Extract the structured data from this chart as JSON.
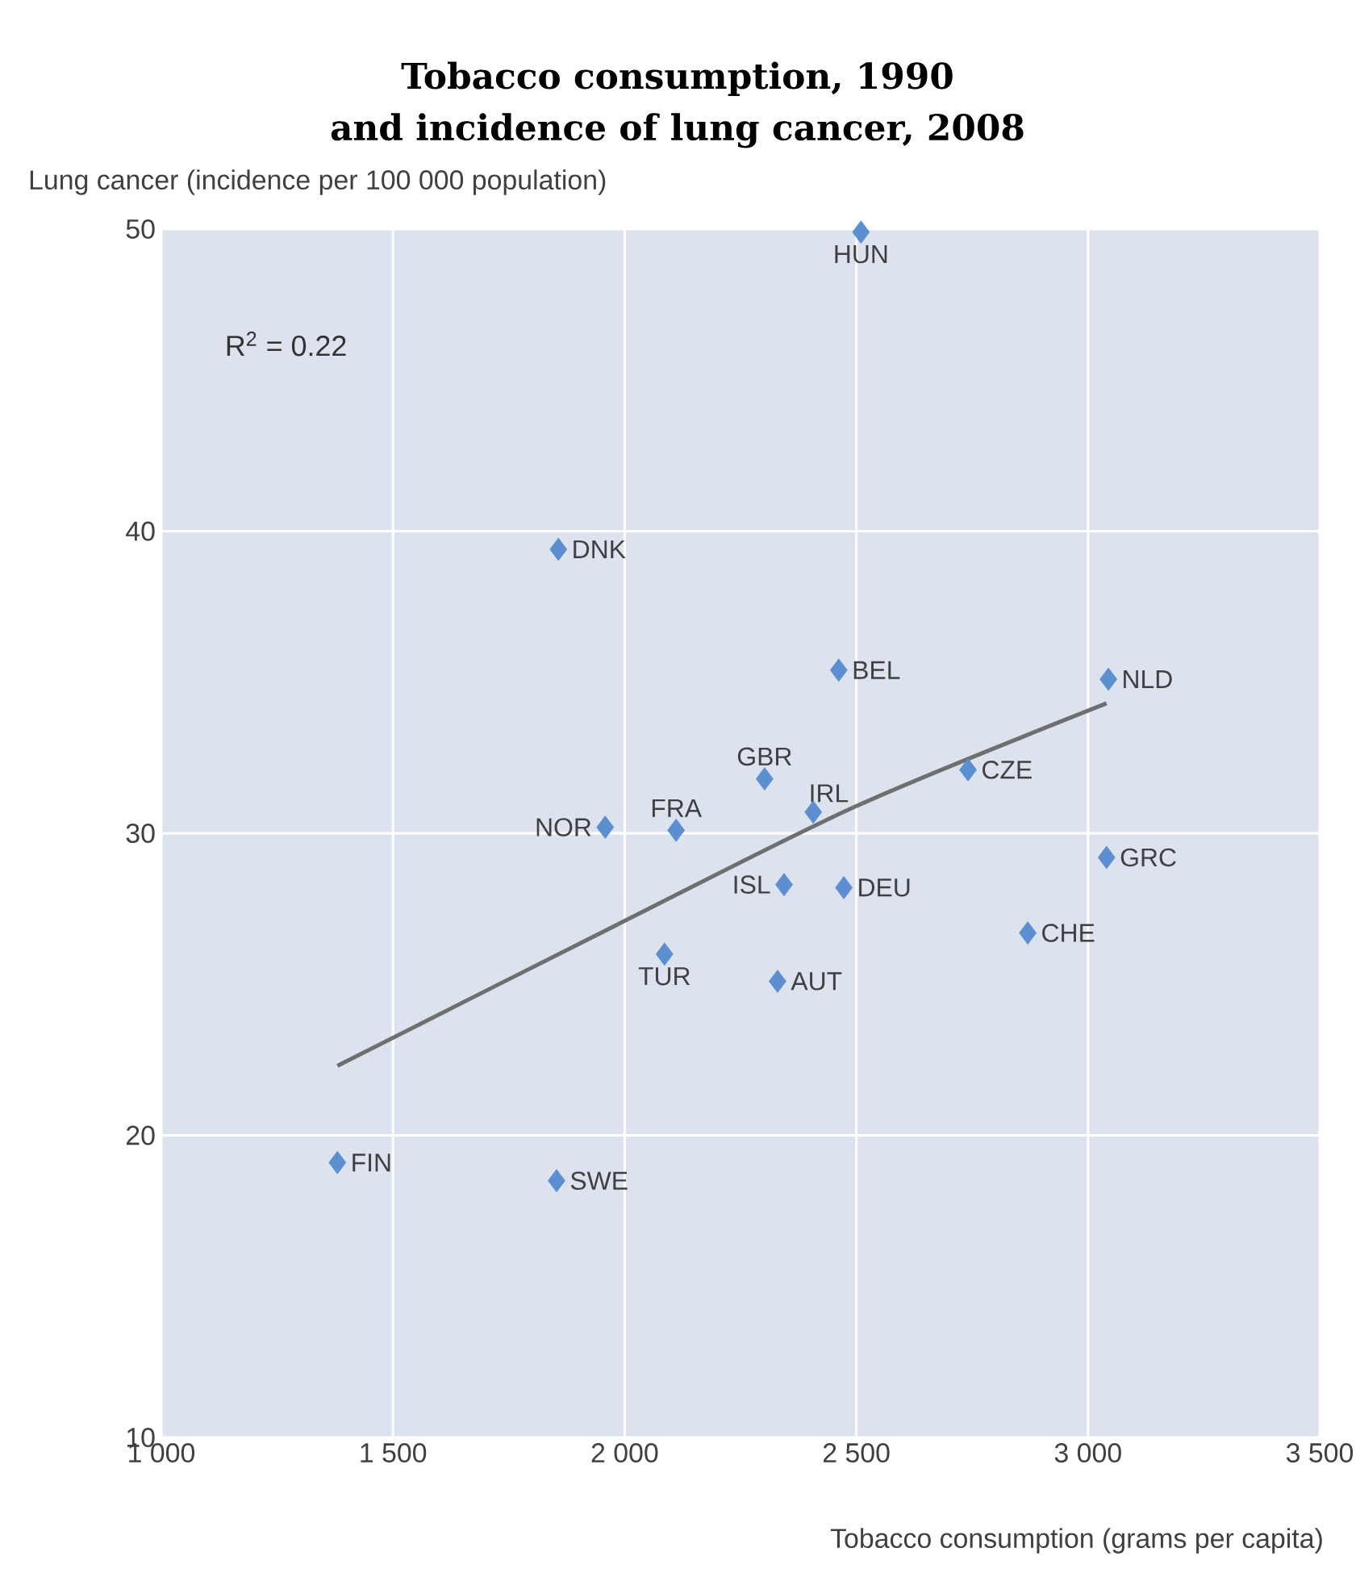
{
  "chart_data": {
    "type": "scatter",
    "title": "Tobacco consumption, 1990\nand incidence of lung cancer, 2008",
    "xlabel": "Tobacco consumption (grams per capita)",
    "ylabel": "Lung cancer (incidence per 100 000 population)",
    "xlim": [
      1000,
      3500
    ],
    "ylim": [
      10,
      50
    ],
    "xticks": [
      {
        "value": 1000,
        "label": "1 000"
      },
      {
        "value": 1500,
        "label": "1 500"
      },
      {
        "value": 2000,
        "label": "2 000"
      },
      {
        "value": 2500,
        "label": "2 500"
      },
      {
        "value": 3000,
        "label": "3 000"
      },
      {
        "value": 3500,
        "label": "3 500"
      }
    ],
    "yticks": [
      10,
      20,
      30,
      40,
      50
    ],
    "grid": true,
    "marker": "diamond",
    "series": [
      {
        "color": "#5b8fd0",
        "x": [
          2510,
          1857,
          2462,
          3044,
          2302,
          2407,
          2741,
          1958,
          2111,
          3040,
          2344,
          2473,
          2870,
          2086,
          2330,
          1380,
          1853
        ],
        "values": [
          49.9,
          39.4,
          35.4,
          35.1,
          31.8,
          30.7,
          32.1,
          30.2,
          30.1,
          29.2,
          28.3,
          28.2,
          26.7,
          26.0,
          25.1,
          19.1,
          18.5
        ]
      },
      {
        "type": "line",
        "marker": "none",
        "color": "#6f6f6f",
        "x": [
          1380,
          2000,
          2500,
          3040
        ],
        "values": [
          22.3,
          27.1,
          30.9,
          34.3
        ]
      }
    ],
    "annotations": [
      "R$^{2}$ = 0.22",
      {
        "text": "HUN",
        "x": 2510,
        "y": 49.9
      },
      {
        "text": "DNK",
        "x": 1857,
        "y": 39.4
      },
      {
        "text": "BEL",
        "x": 2462,
        "y": 35.4
      },
      {
        "text": "NLD",
        "x": 3044,
        "y": 35.1
      },
      {
        "text": "GBR",
        "x": 2302,
        "y": 31.8
      },
      {
        "text": "IRL",
        "x": 2407,
        "y": 30.7
      },
      {
        "text": "CZE",
        "x": 2741,
        "y": 32.1
      },
      {
        "text": "NOR",
        "x": 1958,
        "y": 30.2
      },
      {
        "text": "FRA",
        "x": 2111,
        "y": 30.1
      },
      {
        "text": "GRC",
        "x": 3040,
        "y": 29.2
      },
      {
        "text": "ISL",
        "x": 2344,
        "y": 28.3
      },
      {
        "text": "DEU",
        "x": 2473,
        "y": 28.2
      },
      {
        "text": "CHE",
        "x": 2870,
        "y": 26.7
      },
      {
        "text": "TUR",
        "x": 2086,
        "y": 26.0
      },
      {
        "text": "AUT",
        "x": 2330,
        "y": 25.1
      },
      {
        "text": "FIN",
        "x": 1380,
        "y": 19.1
      },
      {
        "text": "SWE",
        "x": 1853,
        "y": 18.5
      }
    ]
  }
}
